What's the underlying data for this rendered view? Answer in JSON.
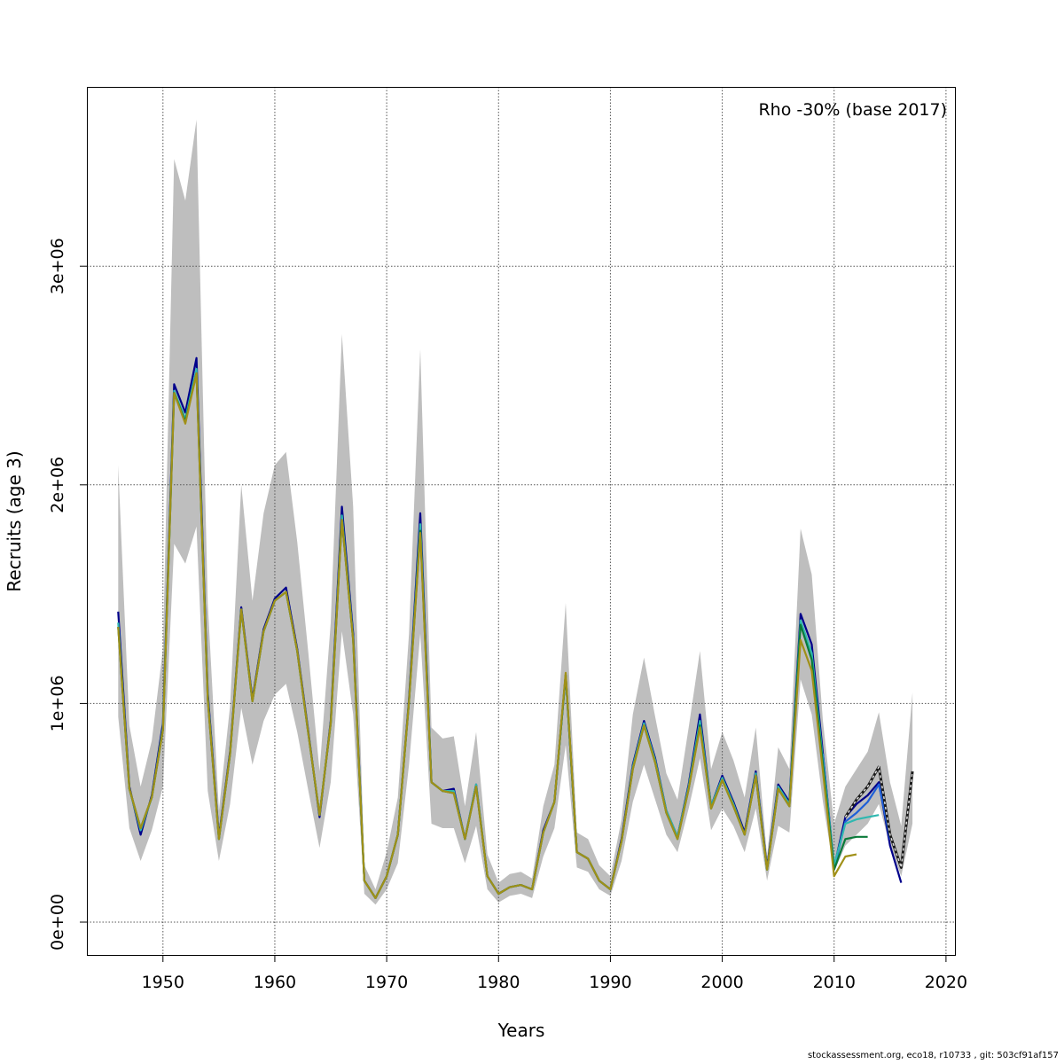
{
  "chart_data": {
    "type": "line",
    "title": "",
    "annotation": "Rho -30% (base 2017)",
    "xlabel": "Years",
    "ylabel": "Recruits (age 3)",
    "xlim": [
      1943.2,
      2020.8
    ],
    "ylim": [
      -150000,
      3820000
    ],
    "x_ticks": [
      1950,
      1960,
      1970,
      1980,
      1990,
      2000,
      2010,
      2020
    ],
    "x_tick_labels": [
      "1950",
      "1960",
      "1970",
      "1980",
      "1990",
      "2000",
      "2010",
      "2020"
    ],
    "y_ticks": [
      0,
      1000000,
      2000000,
      3000000
    ],
    "y_tick_labels": [
      "0e+00",
      "1e+06",
      "2e+06",
      "3e+06"
    ],
    "grid": true,
    "band_color": "#bebebe",
    "ci_band": {
      "x": [
        1946,
        1947,
        1948,
        1949,
        1950,
        1951,
        1952,
        1953,
        1954,
        1955,
        1956,
        1957,
        1958,
        1959,
        1960,
        1961,
        1962,
        1963,
        1964,
        1965,
        1966,
        1967,
        1968,
        1969,
        1970,
        1971,
        1972,
        1973,
        1974,
        1975,
        1976,
        1977,
        1978,
        1979,
        1980,
        1981,
        1982,
        1983,
        1984,
        1985,
        1986,
        1987,
        1988,
        1989,
        1990,
        1991,
        1992,
        1993,
        1994,
        1995,
        1996,
        1997,
        1998,
        1999,
        2000,
        2001,
        2002,
        2003,
        2004,
        2005,
        2006,
        2007,
        2008,
        2009,
        2010,
        2011,
        2012,
        2013,
        2014,
        2015,
        2016,
        2017
      ],
      "upper": [
        2090000,
        900000,
        620000,
        830000,
        1250000,
        3490000,
        3300000,
        3670000,
        1460000,
        510000,
        990000,
        2000000,
        1470000,
        1870000,
        2090000,
        2150000,
        1740000,
        1230000,
        690000,
        1370000,
        2690000,
        1900000,
        260000,
        150000,
        320000,
        570000,
        1320000,
        2620000,
        890000,
        840000,
        850000,
        530000,
        870000,
        310000,
        180000,
        220000,
        230000,
        200000,
        530000,
        720000,
        1460000,
        410000,
        380000,
        260000,
        210000,
        470000,
        950000,
        1210000,
        940000,
        680000,
        560000,
        890000,
        1240000,
        700000,
        870000,
        740000,
        570000,
        890000,
        300000,
        800000,
        700000,
        1800000,
        1590000,
        920000,
        450000,
        620000,
        700000,
        780000,
        960000,
        640000,
        440000,
        1050000
      ],
      "lower": [
        940000,
        430000,
        280000,
        420000,
        620000,
        1730000,
        1640000,
        1810000,
        600000,
        280000,
        540000,
        980000,
        720000,
        920000,
        1040000,
        1090000,
        870000,
        600000,
        340000,
        640000,
        1330000,
        950000,
        130000,
        80000,
        150000,
        270000,
        720000,
        1320000,
        450000,
        430000,
        430000,
        270000,
        440000,
        150000,
        90000,
        120000,
        130000,
        110000,
        300000,
        430000,
        810000,
        250000,
        230000,
        150000,
        120000,
        280000,
        550000,
        720000,
        560000,
        400000,
        320000,
        520000,
        750000,
        420000,
        520000,
        440000,
        320000,
        520000,
        190000,
        440000,
        410000,
        1110000,
        950000,
        550000,
        230000,
        350000,
        400000,
        450000,
        540000,
        350000,
        210000,
        450000
      ]
    },
    "series": [
      {
        "color": "#00008b",
        "x": [
          1946,
          1947,
          1948,
          1949,
          1950,
          1951,
          1952,
          1953,
          1954,
          1955,
          1956,
          1957,
          1958,
          1959,
          1960,
          1961,
          1962,
          1963,
          1964,
          1965,
          1966,
          1967,
          1968,
          1969,
          1970,
          1971,
          1972,
          1973,
          1974,
          1975,
          1976,
          1977,
          1978,
          1979,
          1980,
          1981,
          1982,
          1983,
          1984,
          1985,
          1986,
          1987,
          1988,
          1989,
          1990,
          1991,
          1992,
          1993,
          1994,
          1995,
          1996,
          1997,
          1998,
          1999,
          2000,
          2001,
          2002,
          2003,
          2004,
          2005,
          2006,
          2007,
          2008,
          2009,
          2010,
          2011,
          2012,
          2013,
          2014,
          2015,
          2016
        ],
        "y": [
          1420000,
          620000,
          400000,
          580000,
          910000,
          2460000,
          2330000,
          2580000,
          1050000,
          390000,
          780000,
          1440000,
          1020000,
          1340000,
          1480000,
          1530000,
          1250000,
          870000,
          480000,
          920000,
          1900000,
          1320000,
          190000,
          110000,
          210000,
          400000,
          1020000,
          1870000,
          640000,
          600000,
          610000,
          380000,
          630000,
          210000,
          130000,
          160000,
          170000,
          150000,
          420000,
          550000,
          1130000,
          320000,
          290000,
          190000,
          150000,
          380000,
          720000,
          920000,
          750000,
          510000,
          390000,
          630000,
          950000,
          530000,
          670000,
          550000,
          410000,
          690000,
          250000,
          630000,
          550000,
          1410000,
          1270000,
          770000,
          250000,
          480000,
          540000,
          580000,
          640000,
          350000,
          180000
        ]
      },
      {
        "color": "#1e5fd8",
        "x": [
          2009,
          2010,
          2011,
          2012,
          2013,
          2014,
          2015
        ],
        "y": [
          770000,
          240000,
          460000,
          500000,
          550000,
          630000,
          380000
        ]
      },
      {
        "color": "#2fb8b0",
        "x": [
          1946,
          1947,
          1948,
          1949,
          1950,
          1951,
          1952,
          1953,
          1954,
          1955,
          1956,
          1957,
          1958,
          1959,
          1960,
          1961,
          1962,
          1963,
          1964,
          1965,
          1966,
          1967,
          1968,
          1969,
          1970,
          1971,
          1972,
          1973,
          1974,
          1975,
          1976,
          1977,
          1978,
          1979,
          1980,
          1981,
          1982,
          1983,
          1984,
          1985,
          1986,
          1987,
          1988,
          1989,
          1990,
          1991,
          1992,
          1993,
          1994,
          1995,
          1996,
          1997,
          1998,
          1999,
          2000,
          2001,
          2002,
          2003,
          2004,
          2005,
          2006,
          2007,
          2008,
          2009,
          2010,
          2011,
          2012,
          2013,
          2014
        ],
        "y": [
          1370000,
          610000,
          420000,
          570000,
          890000,
          2430000,
          2300000,
          2530000,
          1030000,
          380000,
          770000,
          1430000,
          1010000,
          1330000,
          1470000,
          1510000,
          1240000,
          860000,
          490000,
          910000,
          1860000,
          1300000,
          190000,
          110000,
          210000,
          400000,
          1010000,
          1820000,
          640000,
          600000,
          600000,
          380000,
          630000,
          210000,
          130000,
          160000,
          170000,
          150000,
          410000,
          550000,
          1130000,
          320000,
          290000,
          190000,
          150000,
          370000,
          710000,
          910000,
          740000,
          510000,
          390000,
          620000,
          920000,
          530000,
          660000,
          540000,
          400000,
          680000,
          240000,
          620000,
          540000,
          1380000,
          1230000,
          740000,
          260000,
          450000,
          470000,
          480000,
          490000
        ]
      },
      {
        "color": "#0a7a3a",
        "x": [
          1946,
          1947,
          1948,
          1949,
          1950,
          1951,
          1952,
          1953,
          1954,
          1955,
          1956,
          1957,
          1958,
          1959,
          1960,
          1961,
          1962,
          1963,
          1964,
          1965,
          1966,
          1967,
          1968,
          1969,
          1970,
          1971,
          1972,
          1973,
          1974,
          1975,
          1976,
          1977,
          1978,
          1979,
          1980,
          1981,
          1982,
          1983,
          1984,
          1985,
          1986,
          1987,
          1988,
          1989,
          1990,
          1991,
          1992,
          1993,
          1994,
          1995,
          1996,
          1997,
          1998,
          1999,
          2000,
          2001,
          2002,
          2003,
          2004,
          2005,
          2006,
          2007,
          2008,
          2009,
          2010,
          2011,
          2012,
          2013
        ],
        "y": [
          1350000,
          610000,
          430000,
          570000,
          880000,
          2420000,
          2290000,
          2510000,
          1020000,
          380000,
          770000,
          1430000,
          1010000,
          1330000,
          1470000,
          1510000,
          1240000,
          860000,
          490000,
          910000,
          1840000,
          1290000,
          190000,
          110000,
          210000,
          400000,
          1010000,
          1790000,
          640000,
          600000,
          590000,
          380000,
          620000,
          210000,
          130000,
          160000,
          170000,
          150000,
          410000,
          550000,
          1130000,
          320000,
          290000,
          190000,
          150000,
          370000,
          700000,
          900000,
          730000,
          500000,
          380000,
          610000,
          900000,
          520000,
          650000,
          530000,
          400000,
          670000,
          240000,
          610000,
          530000,
          1360000,
          1200000,
          720000,
          240000,
          380000,
          390000,
          390000
        ]
      },
      {
        "color": "#a09018",
        "x": [
          1946,
          1947,
          1948,
          1949,
          1950,
          1951,
          1952,
          1953,
          1954,
          1955,
          1956,
          1957,
          1958,
          1959,
          1960,
          1961,
          1962,
          1963,
          1964,
          1965,
          1966,
          1967,
          1968,
          1969,
          1970,
          1971,
          1972,
          1973,
          1974,
          1975,
          1976,
          1977,
          1978,
          1979,
          1980,
          1981,
          1982,
          1983,
          1984,
          1985,
          1986,
          1987,
          1988,
          1989,
          1990,
          1991,
          1992,
          1993,
          1994,
          1995,
          1996,
          1997,
          1998,
          1999,
          2000,
          2001,
          2002,
          2003,
          2004,
          2005,
          2006,
          2007,
          2008,
          2009,
          2010,
          2011,
          2012
        ],
        "y": [
          1350000,
          610000,
          430000,
          570000,
          880000,
          2420000,
          2280000,
          2510000,
          1020000,
          380000,
          770000,
          1430000,
          1010000,
          1330000,
          1470000,
          1510000,
          1240000,
          860000,
          490000,
          910000,
          1840000,
          1290000,
          190000,
          110000,
          210000,
          400000,
          1010000,
          1780000,
          640000,
          600000,
          590000,
          380000,
          620000,
          210000,
          130000,
          160000,
          170000,
          150000,
          410000,
          550000,
          1140000,
          320000,
          290000,
          190000,
          150000,
          370000,
          700000,
          900000,
          730000,
          500000,
          380000,
          610000,
          890000,
          520000,
          650000,
          530000,
          400000,
          670000,
          240000,
          610000,
          530000,
          1290000,
          1150000,
          690000,
          210000,
          300000,
          310000
        ]
      },
      {
        "color": "#1a1a1a",
        "dashed": true,
        "x": [
          2011,
          2012,
          2013,
          2014,
          2015,
          2016,
          2017
        ],
        "y": [
          480000,
          560000,
          620000,
          710000,
          400000,
          250000,
          690000
        ]
      }
    ]
  },
  "footer": "stockassessment.org, eco18, r10733 , git: 503cf91af157"
}
